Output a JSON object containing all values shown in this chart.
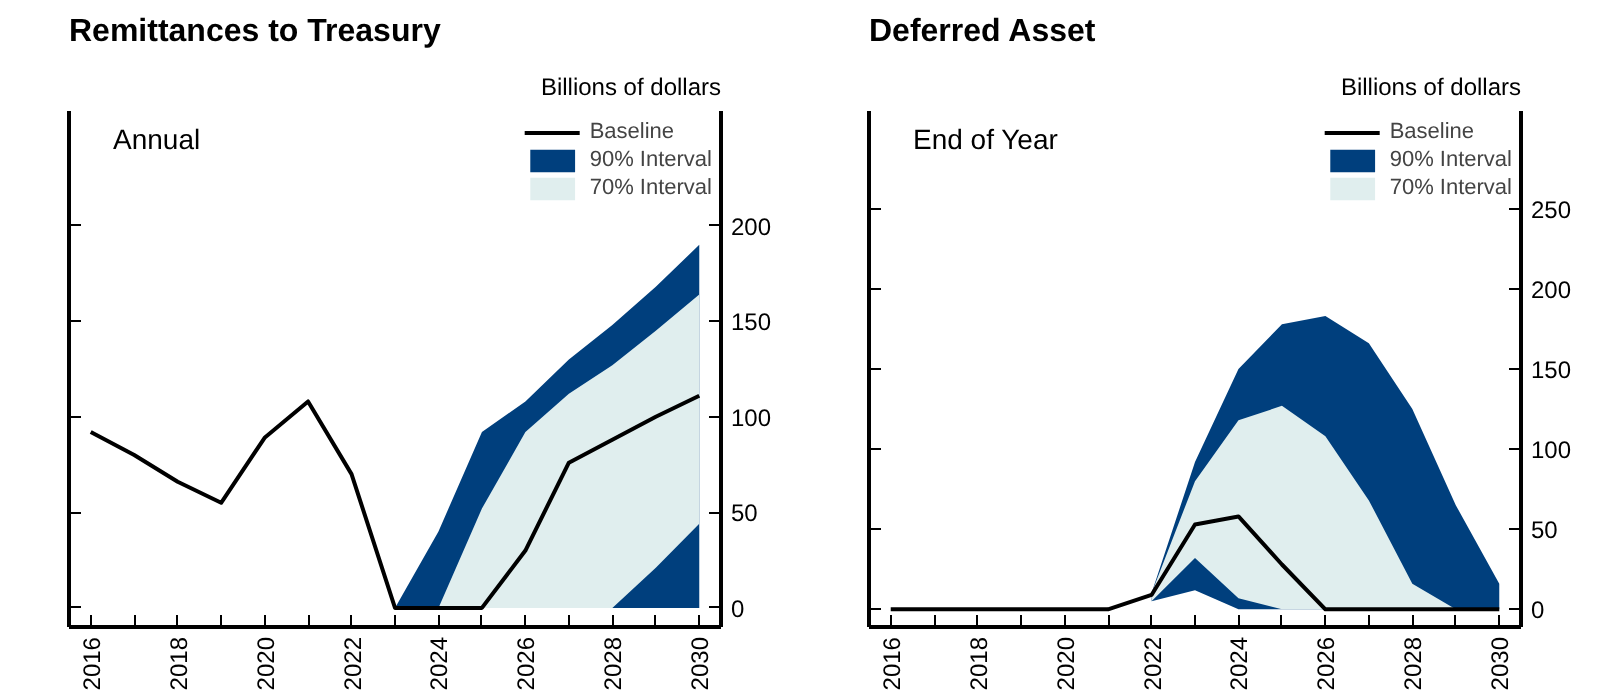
{
  "chart_data": [
    {
      "type": "line",
      "title": "Remittances to Treasury",
      "subtitle": "Annual",
      "ylabel": "Billions of dollars",
      "x": [
        2016,
        2017,
        2018,
        2019,
        2020,
        2021,
        2022,
        2023,
        2024,
        2025,
        2026,
        2027,
        2028,
        2029,
        2030
      ],
      "series": [
        {
          "name": "90% Interval",
          "type": "area",
          "color": "#003f7d",
          "x": [
            2023,
            2024,
            2025,
            2026,
            2027,
            2028,
            2029,
            2030
          ],
          "lower": [
            0,
            0,
            0,
            0,
            0,
            0,
            0,
            0
          ],
          "upper": [
            0,
            40,
            92,
            108,
            130,
            148,
            168,
            190
          ],
          "values": [
            null,
            null,
            null,
            null,
            null,
            null,
            null,
            null
          ]
        },
        {
          "name": "70% Interval",
          "type": "area",
          "color": "#e0eeee",
          "x": [
            2024,
            2025,
            2026,
            2027,
            2028,
            2029,
            2030
          ],
          "lower": [
            0,
            0,
            0,
            0,
            0,
            21,
            44
          ],
          "upper": [
            0,
            52,
            92,
            112,
            127,
            145,
            164
          ],
          "values": [
            null,
            null,
            null,
            null,
            null,
            null,
            null
          ]
        },
        {
          "name": "Baseline",
          "color": "#000000",
          "values": [
            92,
            80,
            66,
            55,
            89,
            108,
            70,
            0,
            0,
            0,
            30,
            76,
            88,
            100,
            111
          ]
        }
      ],
      "xlim": [
        2015.5,
        2030.5
      ],
      "xticks": [
        2016,
        {
          "value": 2017,
          "label": null
        },
        2018,
        {
          "value": 2019,
          "label": null
        },
        2020,
        {
          "value": 2021,
          "label": null
        },
        2022,
        {
          "value": 2023,
          "label": null
        },
        2024,
        {
          "value": 2025,
          "label": null
        },
        2026,
        {
          "value": 2027,
          "label": null
        },
        2028,
        {
          "value": 2029,
          "label": null
        },
        2030
      ],
      "ylim": [
        -10,
        260
      ],
      "yticks": [
        0,
        50,
        100,
        150,
        200
      ],
      "legend": "top right",
      "line_style": "solid"
    },
    {
      "type": "line",
      "title": "Deferred Asset",
      "subtitle": "End of Year",
      "ylabel": "Billions of dollars",
      "x": [
        2016,
        2017,
        2018,
        2019,
        2020,
        2021,
        2022,
        2023,
        2024,
        2025,
        2026,
        2027,
        2028,
        2029,
        2030
      ],
      "series": [
        {
          "name": "90% Interval",
          "type": "area",
          "color": "#003f7d",
          "x": [
            2022,
            2023,
            2024,
            2025,
            2026,
            2027,
            2028,
            2029,
            2030
          ],
          "lower": [
            5,
            12,
            0,
            0,
            0,
            0,
            0,
            0,
            0
          ],
          "upper": [
            10,
            92,
            150,
            178,
            183,
            166,
            125,
            65,
            16
          ],
          "values": [
            null,
            null,
            null,
            null,
            null,
            null,
            null,
            null,
            null
          ]
        },
        {
          "name": "70% Interval",
          "type": "area",
          "color": "#e0eeee",
          "x": [
            2022,
            2023,
            2024,
            2025,
            2026,
            2027,
            2028,
            2029
          ],
          "lower": [
            5,
            32,
            7,
            0,
            0,
            0,
            0,
            0
          ],
          "upper": [
            10,
            80,
            118,
            127,
            108,
            68,
            16,
            0
          ],
          "values": [
            null,
            null,
            null,
            null,
            null,
            null,
            null,
            null
          ]
        },
        {
          "name": "Baseline",
          "color": "#000000",
          "values": [
            0,
            0,
            0,
            0,
            0,
            0,
            9,
            53,
            58,
            28,
            0,
            0,
            0,
            0,
            0
          ]
        }
      ],
      "xlim": [
        2015.5,
        2030.5
      ],
      "xticks": [
        2016,
        {
          "value": 2017,
          "label": null
        },
        2018,
        {
          "value": 2019,
          "label": null
        },
        2020,
        {
          "value": 2021,
          "label": null
        },
        2022,
        {
          "value": 2023,
          "label": null
        },
        2024,
        {
          "value": 2025,
          "label": null
        },
        2026,
        {
          "value": 2027,
          "label": null
        },
        2028,
        {
          "value": 2029,
          "label": null
        },
        2030
      ],
      "ylim": [
        -11,
        311
      ],
      "yticks": [
        0,
        50,
        100,
        150,
        200,
        250
      ],
      "legend": "top right",
      "line_style": "solid"
    }
  ]
}
